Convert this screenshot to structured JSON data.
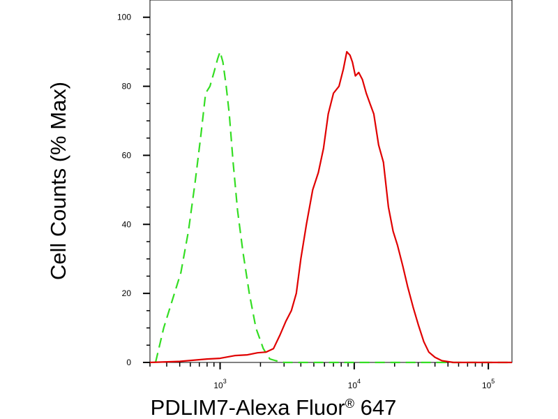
{
  "chart_data": {
    "type": "line",
    "title": "",
    "xlabel": "PDLIM7-Alexa Fluor® 647",
    "ylabel": "Cell Counts (% Max)",
    "x_scale": "log",
    "xlim": [
      300,
      150000
    ],
    "ylim": [
      0,
      105
    ],
    "x_major_ticks": [
      {
        "value": 1000,
        "base": "10",
        "exp": "3"
      },
      {
        "value": 10000,
        "base": "10",
        "exp": "4"
      },
      {
        "value": 100000,
        "base": "10",
        "exp": "5"
      }
    ],
    "y_ticks": [
      {
        "value": 0,
        "label": "0"
      },
      {
        "value": 20,
        "label": "20"
      },
      {
        "value": 40,
        "label": "40"
      },
      {
        "value": 60,
        "label": "60"
      },
      {
        "value": 80,
        "label": "80"
      },
      {
        "value": 100,
        "label": "100"
      }
    ],
    "grid": false,
    "legend": "none",
    "series": [
      {
        "color": "#33dd22",
        "style": "dashed",
        "x": [
          330,
          380,
          440,
          510,
          580,
          650,
          720,
          780,
          840,
          900,
          960,
          1000,
          1050,
          1110,
          1170,
          1250,
          1350,
          1480,
          1650,
          1850,
          2100,
          2350,
          2600,
          3000,
          3500,
          5000,
          10000,
          50000,
          150000
        ],
        "y": [
          0,
          10,
          18,
          26,
          38,
          52,
          66,
          78,
          80,
          84,
          88,
          90,
          87,
          80,
          72,
          58,
          44,
          32,
          20,
          10,
          4,
          1,
          0.5,
          0,
          0,
          0,
          0,
          0,
          0
        ]
      },
      {
        "color": "#e00000",
        "style": "solid",
        "x": [
          300,
          500,
          800,
          1000,
          1300,
          1600,
          1900,
          2200,
          2500,
          2800,
          3100,
          3400,
          3700,
          4000,
          4400,
          4900,
          5400,
          5900,
          6400,
          7000,
          7700,
          8300,
          8800,
          9300,
          9700,
          10200,
          10800,
          11500,
          12300,
          13100,
          14000,
          15200,
          16500,
          18000,
          19500,
          21000,
          23000,
          25000,
          27500,
          30000,
          33000,
          36000,
          40000,
          45000,
          55000,
          80000,
          150000
        ],
        "y": [
          0,
          0.3,
          1,
          1.2,
          2,
          2.2,
          2.8,
          3,
          4,
          8,
          12,
          15,
          20,
          30,
          40,
          50,
          55,
          62,
          72,
          78,
          80,
          85,
          90,
          89,
          87,
          83,
          84,
          82,
          78,
          75,
          72,
          63,
          58,
          45,
          38,
          34,
          28,
          22,
          16,
          11,
          6,
          3,
          1.5,
          0.5,
          0,
          0,
          0
        ]
      }
    ]
  }
}
